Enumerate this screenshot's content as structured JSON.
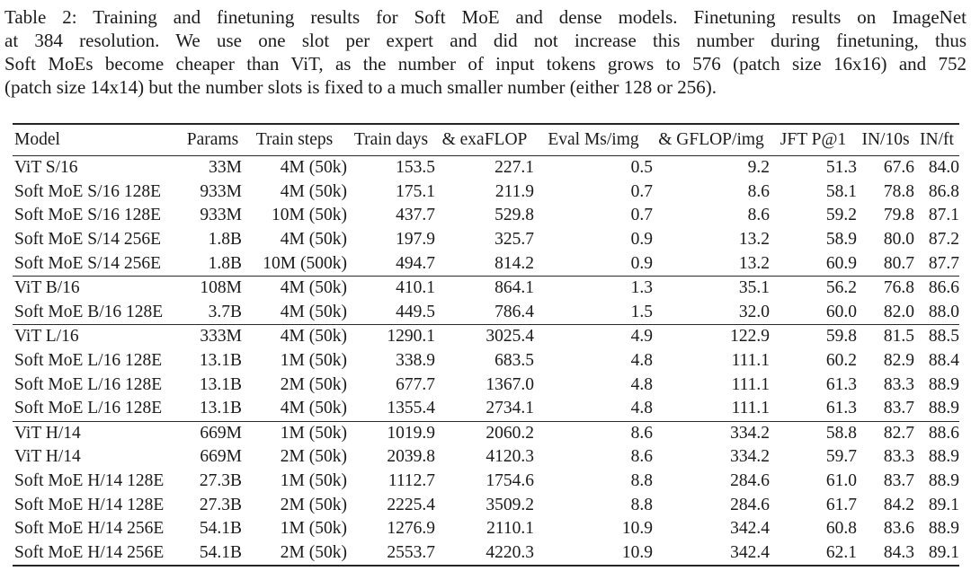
{
  "caption": {
    "lines": [
      "Table 2: Training and finetuning results for Soft MoE and dense models. Finetuning results on ImageNet",
      "at 384 resolution.  We use one slot per expert and did not increase this number during finetuning, thus",
      "Soft MoEs become cheaper than ViT, as the number of input tokens grows to 576 (patch size 16x16) and 752",
      "(patch size 14x14) but the number slots is fixed to a much smaller number (either 128 or 256)."
    ]
  },
  "table": {
    "columns": [
      "Model",
      "Params",
      "Train steps",
      "Train days",
      "& exaFLOP",
      "Eval Ms/img",
      "& GFLOP/img",
      "JFT P@1",
      "IN/10s",
      "IN/ft"
    ],
    "blocks": [
      {
        "rows": [
          [
            "ViT S/16",
            "33M",
            "4M (50k)",
            "153.5",
            "227.1",
            "0.5",
            "9.2",
            "51.3",
            "67.6",
            "84.0"
          ],
          [
            "Soft MoE S/16 128E",
            "933M",
            "4M (50k)",
            "175.1",
            "211.9",
            "0.7",
            "8.6",
            "58.1",
            "78.8",
            "86.8"
          ],
          [
            "Soft MoE S/16 128E",
            "933M",
            "10M (50k)",
            "437.7",
            "529.8",
            "0.7",
            "8.6",
            "59.2",
            "79.8",
            "87.1"
          ],
          [
            "Soft MoE S/14 256E",
            "1.8B",
            "4M (50k)",
            "197.9",
            "325.7",
            "0.9",
            "13.2",
            "58.9",
            "80.0",
            "87.2"
          ],
          [
            "Soft MoE S/14 256E",
            "1.8B",
            "10M (500k)",
            "494.7",
            "814.2",
            "0.9",
            "13.2",
            "60.9",
            "80.7",
            "87.7"
          ]
        ]
      },
      {
        "rows": [
          [
            "ViT B/16",
            "108M",
            "4M (50k)",
            "410.1",
            "864.1",
            "1.3",
            "35.1",
            "56.2",
            "76.8",
            "86.6"
          ],
          [
            "Soft MoE B/16 128E",
            "3.7B",
            "4M (50k)",
            "449.5",
            "786.4",
            "1.5",
            "32.0",
            "60.0",
            "82.0",
            "88.0"
          ]
        ]
      },
      {
        "rows": [
          [
            "ViT L/16",
            "333M",
            "4M (50k)",
            "1290.1",
            "3025.4",
            "4.9",
            "122.9",
            "59.8",
            "81.5",
            "88.5"
          ],
          [
            "Soft MoE L/16 128E",
            "13.1B",
            "1M (50k)",
            "338.9",
            "683.5",
            "4.8",
            "111.1",
            "60.2",
            "82.9",
            "88.4"
          ],
          [
            "Soft MoE L/16 128E",
            "13.1B",
            "2M (50k)",
            "677.7",
            "1367.0",
            "4.8",
            "111.1",
            "61.3",
            "83.3",
            "88.9"
          ],
          [
            "Soft MoE L/16 128E",
            "13.1B",
            "4M (50k)",
            "1355.4",
            "2734.1",
            "4.8",
            "111.1",
            "61.3",
            "83.7",
            "88.9"
          ]
        ]
      },
      {
        "rows": [
          [
            "ViT H/14",
            "669M",
            "1M (50k)",
            "1019.9",
            "2060.2",
            "8.6",
            "334.2",
            "58.8",
            "82.7",
            "88.6"
          ],
          [
            "ViT H/14",
            "669M",
            "2M (50k)",
            "2039.8",
            "4120.3",
            "8.6",
            "334.2",
            "59.7",
            "83.3",
            "88.9"
          ],
          [
            "Soft MoE H/14 128E",
            "27.3B",
            "1M (50k)",
            "1112.7",
            "1754.6",
            "8.8",
            "284.6",
            "61.0",
            "83.7",
            "88.9"
          ],
          [
            "Soft MoE H/14 128E",
            "27.3B",
            "2M (50k)",
            "2225.4",
            "3509.2",
            "8.8",
            "284.6",
            "61.7",
            "84.2",
            "89.1"
          ],
          [
            "Soft MoE H/14 256E",
            "54.1B",
            "1M (50k)",
            "1276.9",
            "2110.1",
            "10.9",
            "342.4",
            "60.8",
            "83.6",
            "88.9"
          ],
          [
            "Soft MoE H/14 256E",
            "54.1B",
            "2M (50k)",
            "2553.7",
            "4220.3",
            "10.9",
            "342.4",
            "62.1",
            "84.3",
            "89.1"
          ]
        ]
      }
    ]
  }
}
